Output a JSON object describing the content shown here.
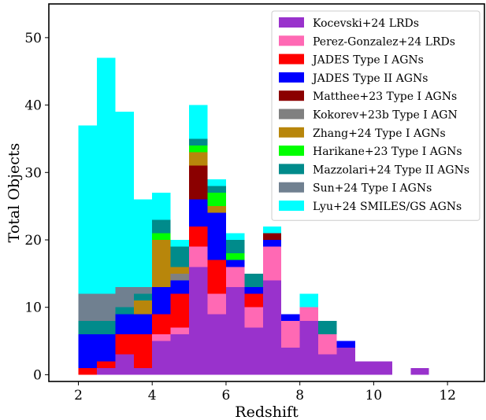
{
  "chart_data": {
    "type": "bar",
    "stacked": true,
    "bin_width": 0.5,
    "x": [
      2.0,
      2.5,
      3.0,
      3.5,
      4.0,
      4.5,
      5.0,
      5.5,
      6.0,
      6.5,
      7.0,
      7.5,
      8.0,
      8.5,
      9.0,
      9.5,
      10.0,
      10.5,
      11.0
    ],
    "series": [
      {
        "name": "Kocevski+24 LRDs",
        "color": "#9932cc",
        "values": [
          0,
          1,
          3,
          1,
          5,
          6,
          16,
          9,
          13,
          7,
          14,
          4,
          8,
          3,
          4,
          2,
          2,
          0,
          1
        ]
      },
      {
        "name": "Perez-Gonzalez+24 LRDs",
        "color": "#ff69b4",
        "values": [
          0,
          0,
          0,
          0,
          1,
          1,
          3,
          3,
          3,
          3,
          5,
          4,
          2,
          3,
          0,
          0,
          0,
          0,
          0
        ]
      },
      {
        "name": "JADES Type I AGNs",
        "color": "#ff0000",
        "values": [
          1,
          1,
          3,
          5,
          3,
          5,
          3,
          5,
          0,
          2,
          0,
          0,
          0,
          0,
          0,
          0,
          0,
          0,
          0
        ]
      },
      {
        "name": "JADES Type II AGNs",
        "color": "#0000ff",
        "values": [
          5,
          4,
          3,
          3,
          4,
          2,
          4,
          7,
          1,
          1,
          1,
          1,
          0,
          0,
          1,
          0,
          0,
          0,
          0
        ]
      },
      {
        "name": "Matthee+23 Type I AGNs",
        "color": "#8b0000",
        "values": [
          0,
          0,
          0,
          0,
          0,
          0,
          5,
          0,
          0,
          0,
          1,
          0,
          0,
          0,
          0,
          0,
          0,
          0,
          0
        ]
      },
      {
        "name": "Kokorev+23b Type I AGN",
        "color": "#808080",
        "values": [
          0,
          0,
          0,
          0,
          0,
          1,
          0,
          0,
          0,
          0,
          0,
          0,
          0,
          0,
          0,
          0,
          0,
          0,
          0
        ]
      },
      {
        "name": "Zhang+24 Type I AGNs",
        "color": "#b8860b",
        "values": [
          0,
          0,
          0,
          2,
          7,
          1,
          2,
          1,
          0,
          0,
          0,
          0,
          0,
          0,
          0,
          0,
          0,
          0,
          0
        ]
      },
      {
        "name": "Harikane+23 Type I AGNs",
        "color": "#00ff00",
        "values": [
          0,
          0,
          0,
          0,
          1,
          0,
          1,
          2,
          1,
          0,
          0,
          0,
          0,
          0,
          0,
          0,
          0,
          0,
          0
        ]
      },
      {
        "name": "Mazzolari+24 Type II AGNs",
        "color": "#008b8b",
        "values": [
          2,
          2,
          1,
          1,
          2,
          3,
          1,
          1,
          2,
          2,
          0,
          0,
          0,
          2,
          0,
          0,
          0,
          0,
          0
        ]
      },
      {
        "name": "Sun+24 Type I AGNs",
        "color": "#708090",
        "values": [
          4,
          4,
          3,
          1,
          0,
          0,
          0,
          0,
          0,
          0,
          0,
          0,
          0,
          0,
          0,
          0,
          0,
          0,
          0
        ]
      },
      {
        "name": "Lyu+24 SMILES/GS AGNs",
        "color": "#00ffff",
        "values": [
          25,
          35,
          26,
          13,
          4,
          1,
          5,
          1,
          1,
          0,
          1,
          0,
          2,
          0,
          0,
          0,
          0,
          0,
          0
        ]
      }
    ],
    "title": "",
    "xlabel": "Redshift",
    "ylabel": "Total Objects",
    "xlim": [
      1.2,
      13.0
    ],
    "ylim": [
      -1.0,
      55.0
    ],
    "xticks": [
      2,
      4,
      6,
      8,
      10,
      12
    ],
    "yticks": [
      0,
      10,
      20,
      30,
      40,
      50
    ],
    "grid": false,
    "legend_position": "top-right"
  }
}
